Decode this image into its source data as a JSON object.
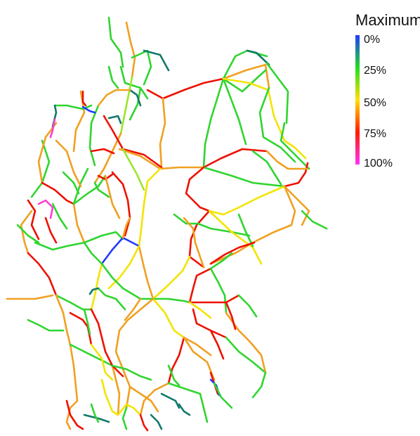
{
  "legend": {
    "title": "Maximum",
    "ticks": [
      "0%",
      "25%",
      "50%",
      "75%",
      "100%"
    ],
    "stops": [
      {
        "offset": 0.0,
        "color": "#1f3bff"
      },
      {
        "offset": 0.25,
        "color": "#22dd22"
      },
      {
        "offset": 0.5,
        "color": "#ffe000"
      },
      {
        "offset": 0.75,
        "color": "#ff1a00"
      },
      {
        "offset": 1.0,
        "color": "#ff33ff"
      }
    ]
  },
  "palette": {
    "blue": "#1f3bff",
    "teal": "#127a6a",
    "green": "#2fd52f",
    "lime": "#9ae62a",
    "yellow": "#f2e400",
    "orange": "#f0a020",
    "red": "#ee1100",
    "magenta": "#ff3fd0"
  }
}
